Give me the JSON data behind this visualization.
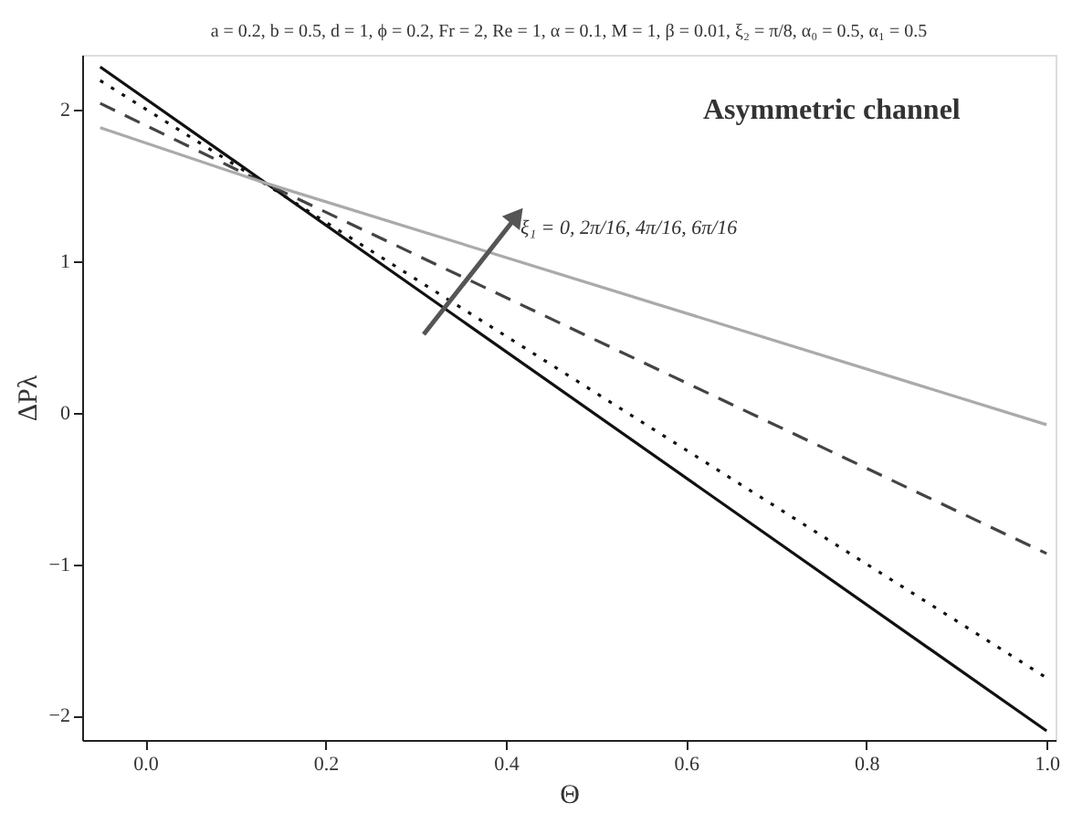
{
  "chart_data": {
    "type": "line",
    "title": "a = 0.2, b = 0.5, d = 1, ϕ = 0.2, Fr = 2, Re = 1, α = 0.1, M = 1, β = 0.01, ξ₂ = π/8, α₀ = 0.5, α₁ = 0.5",
    "xlabel": "Θ",
    "ylabel": "ΔPλ",
    "annotations": [
      "Asymmetric channel",
      "ξ₁ = 0, 2π/16, 4π/16, 6π/16"
    ],
    "x": [
      -0.05,
      0.13,
      1.0
    ],
    "series": [
      {
        "color": "#111111",
        "line_style": "solid",
        "values": [
          2.28,
          1.53,
          -2.1
        ]
      },
      {
        "color": "#111111",
        "line_style": "dotted",
        "values": [
          2.19,
          1.52,
          -1.75
        ]
      },
      {
        "color": "#444444",
        "line_style": "dashed",
        "values": [
          2.04,
          1.52,
          -0.93
        ]
      },
      {
        "color": "#aaaaaa",
        "line_style": "solid",
        "values": [
          1.88,
          1.52,
          -0.08
        ]
      }
    ],
    "xlim": [
      -0.07,
      1.01
    ],
    "ylim": [
      -2.16,
      2.36
    ],
    "xticks": [
      {
        "value": 0,
        "label": "0.0"
      },
      0.2,
      0.4,
      0.6,
      0.8,
      {
        "value": 1,
        "label": "1.0"
      }
    ],
    "yticks": [
      -2,
      -1,
      0,
      1,
      2
    ],
    "grid": false
  }
}
